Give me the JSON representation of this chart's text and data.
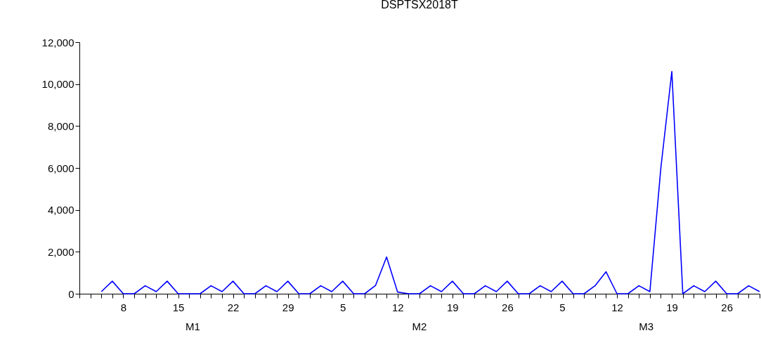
{
  "chart_data": {
    "type": "line",
    "title": "DSPTSX2018T",
    "categories": [
      null,
      null,
      null,
      null,
      "8",
      null,
      null,
      null,
      null,
      "15",
      null,
      null,
      null,
      null,
      "22",
      null,
      null,
      null,
      null,
      "29",
      null,
      null,
      null,
      null,
      "5",
      null,
      null,
      null,
      null,
      "12",
      null,
      null,
      null,
      null,
      "19",
      null,
      null,
      null,
      null,
      "26",
      null,
      null,
      null,
      null,
      "5",
      null,
      null,
      null,
      null,
      "12",
      null,
      null,
      null,
      null,
      "19",
      null,
      null,
      null,
      null,
      "26",
      null,
      null,
      null
    ],
    "series": [
      {
        "color": "#0000ff",
        "values": [
          null,
          null,
          100,
          600,
          0,
          0,
          380,
          100,
          600,
          0,
          0,
          0,
          380,
          100,
          600,
          0,
          0,
          380,
          100,
          600,
          0,
          0,
          380,
          100,
          600,
          0,
          0,
          400,
          1750,
          80,
          0,
          0,
          380,
          100,
          600,
          0,
          0,
          380,
          100,
          600,
          0,
          0,
          380,
          100,
          600,
          0,
          0,
          380,
          1050,
          0,
          0,
          380,
          100,
          6000,
          10600,
          0,
          380,
          100,
          600,
          0,
          0,
          380,
          100
        ]
      }
    ],
    "annotations": [
      "M1",
      "M2",
      "M3"
    ],
    "ylim": [
      0,
      12000
    ],
    "yticks": [
      0,
      {
        "value": 2000,
        "label": "2,000"
      },
      {
        "value": 4000,
        "label": "4,000"
      },
      {
        "value": 6000,
        "label": "6,000"
      },
      {
        "value": 8000,
        "label": "8,000"
      },
      {
        "value": 10000,
        "label": "10,000"
      },
      {
        "value": 12000,
        "label": "12,000"
      }
    ],
    "grid": false,
    "line_style": "solid",
    "marker": "none"
  }
}
